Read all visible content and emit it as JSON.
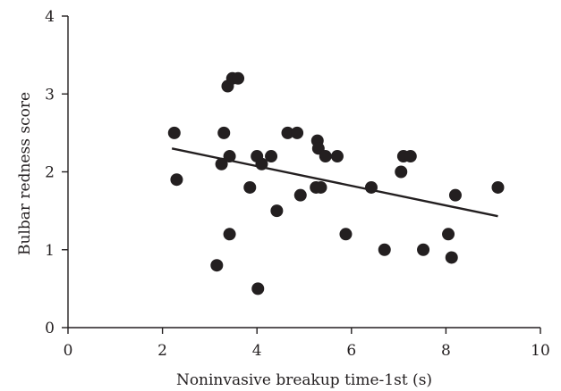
{
  "chart_data": {
    "type": "scatter",
    "title": "",
    "xlabel": "Noninvasive breakup time-1st (s)",
    "ylabel": "Bulbar redness score",
    "xlim": [
      0,
      10
    ],
    "ylim": [
      0,
      4
    ],
    "x_ticks": [
      0,
      2,
      4,
      6,
      8,
      10
    ],
    "y_ticks": [
      0,
      1,
      2,
      3,
      4
    ],
    "grid": false,
    "legend": "none",
    "points": [
      {
        "x": 2.25,
        "y": 2.5
      },
      {
        "x": 2.3,
        "y": 1.9
      },
      {
        "x": 3.15,
        "y": 0.8
      },
      {
        "x": 3.25,
        "y": 2.1
      },
      {
        "x": 3.3,
        "y": 2.5
      },
      {
        "x": 3.38,
        "y": 3.1
      },
      {
        "x": 3.42,
        "y": 2.2
      },
      {
        "x": 3.42,
        "y": 1.2
      },
      {
        "x": 3.48,
        "y": 3.2
      },
      {
        "x": 3.6,
        "y": 3.2
      },
      {
        "x": 3.85,
        "y": 1.8
      },
      {
        "x": 4.0,
        "y": 2.2
      },
      {
        "x": 4.02,
        "y": 0.5
      },
      {
        "x": 4.1,
        "y": 2.1
      },
      {
        "x": 4.3,
        "y": 2.2
      },
      {
        "x": 4.42,
        "y": 1.5
      },
      {
        "x": 4.65,
        "y": 2.5
      },
      {
        "x": 4.85,
        "y": 2.5
      },
      {
        "x": 4.92,
        "y": 1.7
      },
      {
        "x": 5.25,
        "y": 1.8
      },
      {
        "x": 5.28,
        "y": 2.4
      },
      {
        "x": 5.3,
        "y": 2.3
      },
      {
        "x": 5.35,
        "y": 1.8
      },
      {
        "x": 5.45,
        "y": 2.2
      },
      {
        "x": 5.7,
        "y": 2.2
      },
      {
        "x": 5.88,
        "y": 1.2
      },
      {
        "x": 6.42,
        "y": 1.8
      },
      {
        "x": 6.7,
        "y": 1.0
      },
      {
        "x": 7.05,
        "y": 2.0
      },
      {
        "x": 7.1,
        "y": 2.2
      },
      {
        "x": 7.25,
        "y": 2.2
      },
      {
        "x": 7.52,
        "y": 1.0
      },
      {
        "x": 8.05,
        "y": 1.2
      },
      {
        "x": 8.12,
        "y": 0.9
      },
      {
        "x": 8.2,
        "y": 1.7
      },
      {
        "x": 9.1,
        "y": 1.8
      }
    ],
    "trendline": {
      "x": [
        2.2,
        9.1
      ],
      "y": [
        2.3,
        1.43
      ]
    },
    "colors": {
      "points": "#231f20",
      "axes": "#231f20",
      "trendline": "#231f20"
    }
  }
}
